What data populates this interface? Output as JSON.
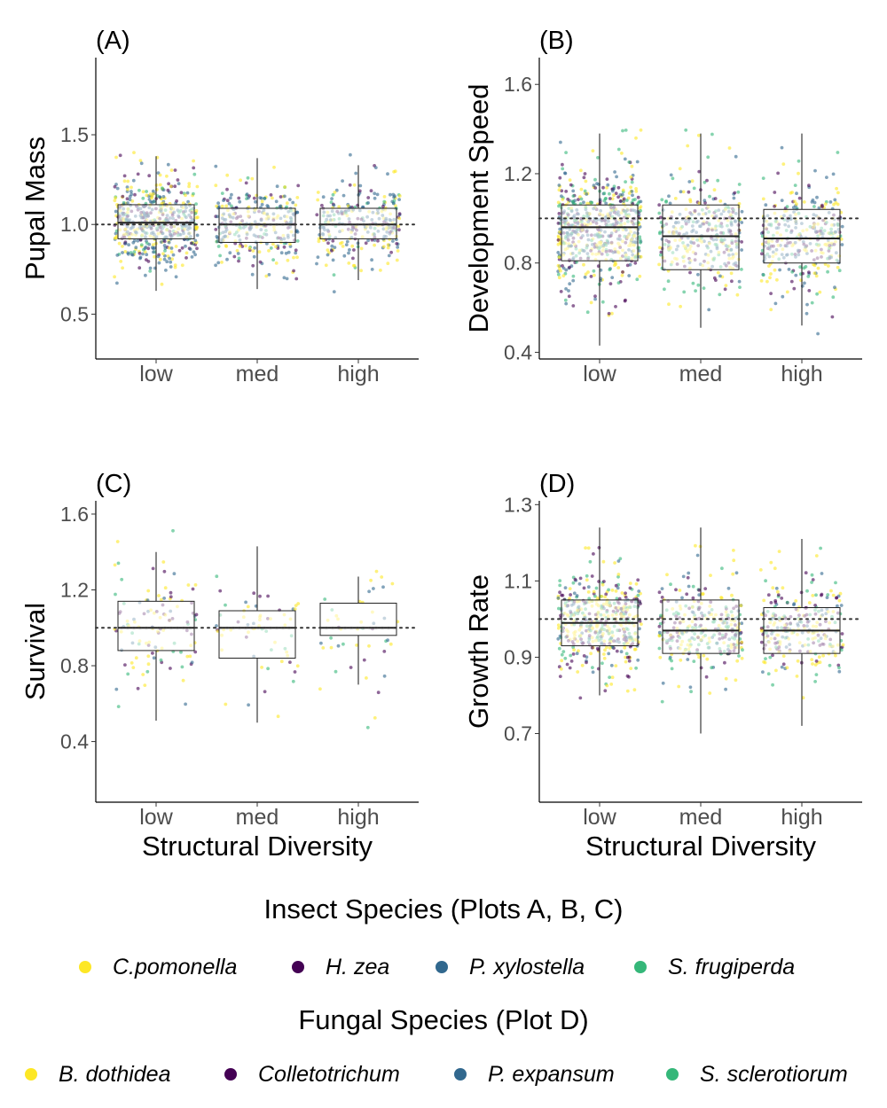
{
  "chart_data": [
    {
      "type": "box",
      "panel_label": "(A)",
      "xlabel": "",
      "ylabel": "Pupal Mass",
      "categories": [
        "low",
        "med",
        "high"
      ],
      "yticks": [
        "0.5",
        "1.0",
        "1.5"
      ],
      "ytick_values": [
        0.5,
        1.0,
        1.5
      ],
      "ylim": [
        0.25,
        1.93
      ],
      "reference_line": 1.0,
      "boxes": [
        {
          "category": "low",
          "min": 0.63,
          "q1": 0.92,
          "median": 1.01,
          "q3": 1.11,
          "max": 1.38
        },
        {
          "category": "med",
          "min": 0.64,
          "q1": 0.9,
          "median": 1.0,
          "q3": 1.09,
          "max": 1.37
        },
        {
          "category": "high",
          "min": 0.69,
          "q1": 0.92,
          "median": 1.0,
          "q3": 1.09,
          "max": 1.33
        }
      ],
      "points_per_group": [
        520,
        290,
        270
      ],
      "spread": 0.21,
      "color_weights": [
        0.25,
        0.2,
        0.45,
        0.1
      ],
      "seed": 11
    },
    {
      "type": "box",
      "panel_label": "(B)",
      "xlabel": "",
      "ylabel": "Development Speed",
      "categories": [
        "low",
        "med",
        "high"
      ],
      "yticks": [
        "0.4",
        "0.8",
        "1.2",
        "1.6"
      ],
      "ytick_values": [
        0.4,
        0.8,
        1.2,
        1.6
      ],
      "ylim": [
        0.37,
        1.72
      ],
      "reference_line": 1.0,
      "boxes": [
        {
          "category": "low",
          "min": 0.43,
          "q1": 0.81,
          "median": 0.96,
          "q3": 1.06,
          "max": 1.38
        },
        {
          "category": "med",
          "min": 0.51,
          "q1": 0.77,
          "median": 0.92,
          "q3": 1.06,
          "max": 1.38
        },
        {
          "category": "high",
          "min": 0.52,
          "q1": 0.8,
          "median": 0.91,
          "q3": 1.04,
          "max": 1.38
        }
      ],
      "points_per_group": [
        620,
        340,
        330
      ],
      "spread": 0.22,
      "color_weights": [
        0.3,
        0.2,
        0.3,
        0.2
      ],
      "seed": 23
    },
    {
      "type": "box",
      "panel_label": "(C)",
      "xlabel": "Structural Diversity",
      "ylabel": "Survival",
      "categories": [
        "low",
        "med",
        "high"
      ],
      "yticks": [
        "0.4",
        "0.8",
        "1.2",
        "1.6"
      ],
      "ytick_values": [
        0.4,
        0.8,
        1.2,
        1.6
      ],
      "ylim": [
        0.08,
        1.67
      ],
      "reference_line": 1.0,
      "boxes": [
        {
          "category": "low",
          "min": 0.51,
          "q1": 0.88,
          "median": 1.0,
          "q3": 1.14,
          "max": 1.4
        },
        {
          "category": "med",
          "min": 0.5,
          "q1": 0.84,
          "median": 1.0,
          "q3": 1.09,
          "max": 1.43
        },
        {
          "category": "high",
          "min": 0.7,
          "q1": 0.96,
          "median": 1.0,
          "q3": 1.13,
          "max": 1.27
        }
      ],
      "points_per_group": [
        110,
        60,
        45
      ],
      "spread": 0.3,
      "color_weights": [
        0.4,
        0.25,
        0.15,
        0.2
      ],
      "seed": 37
    },
    {
      "type": "box",
      "panel_label": "(D)",
      "xlabel": "Structural Diversity",
      "ylabel": "Growth Rate",
      "categories": [
        "low",
        "med",
        "high"
      ],
      "yticks": [
        "0.7",
        "0.9",
        "1.1",
        "1.3"
      ],
      "ytick_values": [
        0.7,
        0.9,
        1.1,
        1.3
      ],
      "ylim": [
        0.52,
        1.31
      ],
      "reference_line": 1.0,
      "boxes": [
        {
          "category": "low",
          "min": 0.8,
          "q1": 0.93,
          "median": 0.99,
          "q3": 1.05,
          "max": 1.24
        },
        {
          "category": "med",
          "min": 0.7,
          "q1": 0.91,
          "median": 0.97,
          "q3": 1.05,
          "max": 1.24
        },
        {
          "category": "high",
          "min": 0.72,
          "q1": 0.91,
          "median": 0.97,
          "q3": 1.03,
          "max": 1.21
        }
      ],
      "points_per_group": [
        460,
        300,
        260
      ],
      "spread": 0.11,
      "color_weights": [
        0.35,
        0.25,
        0.15,
        0.25
      ],
      "seed": 53
    }
  ],
  "colors": {
    "yellow": "#FDE725",
    "purple": "#440154",
    "blue": "#31688E",
    "green": "#35B779",
    "box_fill": "#FFFFFF",
    "reference_line": "#333333"
  },
  "legend": {
    "insect": {
      "title": "Insect Species (Plots A, B, C)",
      "items": [
        {
          "label": "C.pomonella",
          "color": "#FDE725"
        },
        {
          "label": "H. zea",
          "color": "#440154"
        },
        {
          "label": "P. xylostella",
          "color": "#31688E"
        },
        {
          "label": "S. frugiperda",
          "color": "#35B779"
        }
      ]
    },
    "fungal": {
      "title": "Fungal Species (Plot D)",
      "items": [
        {
          "label": "B. dothidea",
          "color": "#FDE725"
        },
        {
          "label": "Colletotrichum",
          "color": "#440154"
        },
        {
          "label": "P. expansum",
          "color": "#31688E"
        },
        {
          "label": "S. sclerotiorum",
          "color": "#35B779"
        }
      ]
    }
  }
}
